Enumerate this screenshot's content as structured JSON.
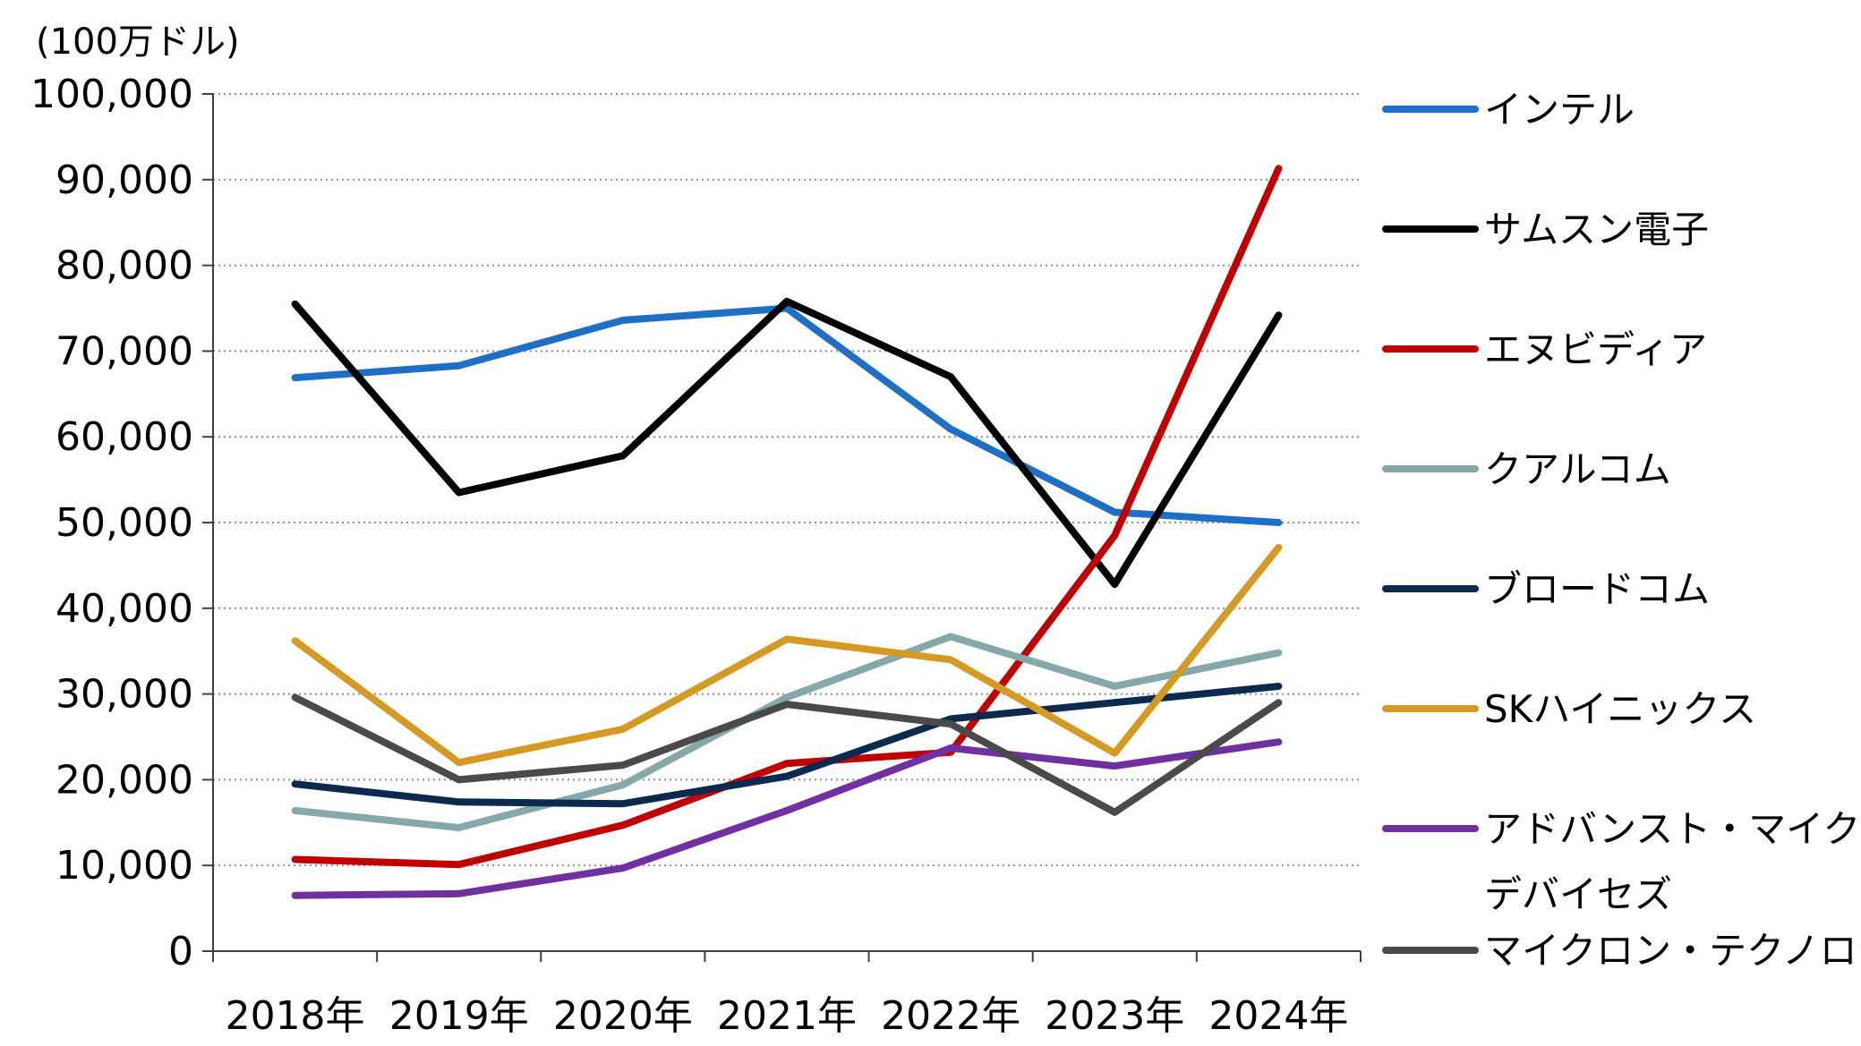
{
  "chart_data": {
    "type": "line",
    "unit_label": "(100万ドル)",
    "categories": [
      "2018年",
      "2019年",
      "2020年",
      "2021年",
      "2022年",
      "2023年",
      "2024年"
    ],
    "ylim": [
      0,
      100000
    ],
    "yticks": [
      0,
      10000,
      20000,
      30000,
      40000,
      50000,
      60000,
      70000,
      80000,
      90000,
      100000
    ],
    "ytick_labels": [
      "0",
      "10,000",
      "20,000",
      "30,000",
      "40,000",
      "50,000",
      "60,000",
      "70,000",
      "80,000",
      "90,000",
      "100,000"
    ],
    "grid": "horizontal dotted",
    "legend_position": "right",
    "series": [
      {
        "name": "インテル",
        "color": "#1f6fc5",
        "values": [
          66900,
          68300,
          73600,
          75000,
          60900,
          51200,
          50000
        ]
      },
      {
        "name": "サムスン電子",
        "color": "#000000",
        "values": [
          75500,
          53500,
          57800,
          75800,
          67000,
          42800,
          74200
        ]
      },
      {
        "name": "エヌビディア",
        "color": "#c00000",
        "values": [
          10700,
          10100,
          14700,
          21900,
          23200,
          48500,
          91300
        ]
      },
      {
        "name": "クアルコム",
        "color": "#86a8aa",
        "values": [
          16400,
          14400,
          19400,
          29600,
          36700,
          30900,
          34800
        ]
      },
      {
        "name": "ブロードコム",
        "color": "#0c2a4e",
        "values": [
          19500,
          17400,
          17200,
          20400,
          27100,
          29000,
          30900
        ]
      },
      {
        "name": "SKハイニックス",
        "color": "#d49a23",
        "values": [
          36200,
          22000,
          25900,
          36400,
          34000,
          23100,
          47100
        ]
      },
      {
        "name": "アドバンスト・マイクロ・",
        "name_line2": "デバイセズ",
        "color": "#7030a0",
        "values": [
          6500,
          6700,
          9700,
          16400,
          23700,
          21600,
          24400
        ]
      },
      {
        "name": "マイクロン・テクノロジー",
        "color": "#4a4a4a",
        "values": [
          29600,
          20000,
          21700,
          28800,
          26500,
          16200,
          29000
        ]
      }
    ]
  }
}
